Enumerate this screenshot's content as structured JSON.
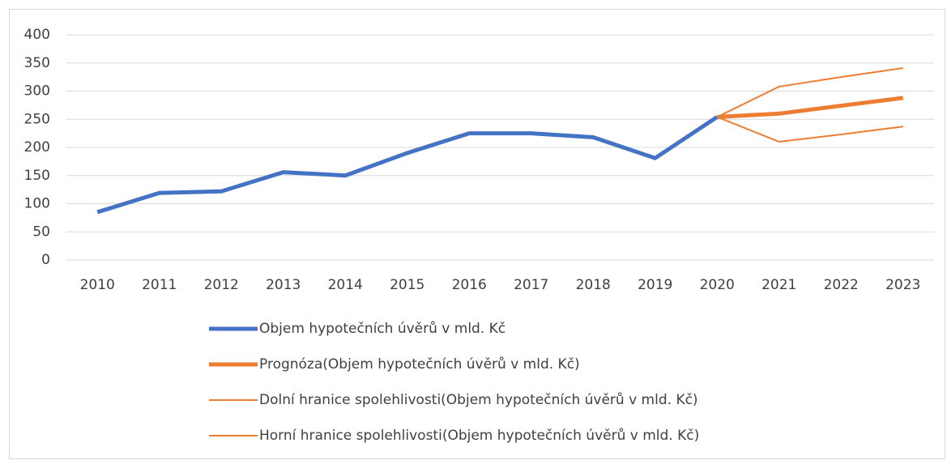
{
  "chart_data": {
    "type": "line",
    "categories": [
      "2010",
      "2011",
      "2012",
      "2013",
      "2014",
      "2015",
      "2016",
      "2017",
      "2018",
      "2019",
      "2020",
      "2021",
      "2022",
      "2023"
    ],
    "series": [
      {
        "name": "Objem hypotečních úvěrů v mld. Kč",
        "color": "#4472c4",
        "width": 5,
        "values": [
          85,
          119,
          122,
          156,
          150,
          190,
          225,
          225,
          218,
          181,
          254,
          null,
          null,
          null
        ]
      },
      {
        "name": "Prognóza(Objem hypotečních úvěrů v mld. Kč)",
        "color": "#ed7d31",
        "width": 5,
        "values": [
          null,
          null,
          null,
          null,
          null,
          null,
          null,
          null,
          null,
          null,
          254,
          260,
          274,
          288
        ]
      },
      {
        "name": "Dolní hranice spolehlivosti(Objem hypotečních úvěrů v mld. Kč)",
        "color": "#ed7d31",
        "width": 2,
        "values": [
          null,
          null,
          null,
          null,
          null,
          null,
          null,
          null,
          null,
          null,
          254,
          210,
          223,
          237
        ]
      },
      {
        "name": "Horní hranice spolehlivosti(Objem hypotečních úvěrů v mld. Kč)",
        "color": "#ed7d31",
        "width": 2,
        "values": [
          null,
          null,
          null,
          null,
          null,
          null,
          null,
          null,
          null,
          null,
          254,
          308,
          325,
          341
        ]
      }
    ],
    "ylim": [
      0,
      400
    ],
    "yticks": [
      0,
      50,
      100,
      150,
      200,
      250,
      300,
      350,
      400
    ],
    "grid": true,
    "legend": "bottom"
  }
}
